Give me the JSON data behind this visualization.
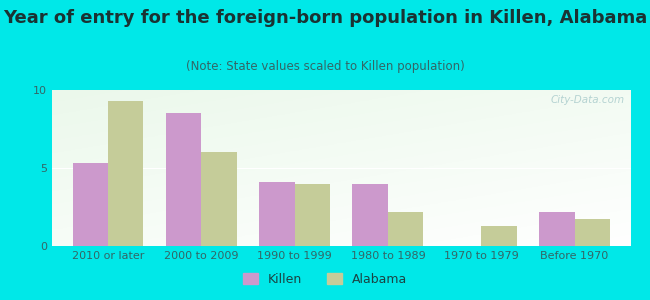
{
  "title": "Year of entry for the foreign-born population in Killen, Alabama",
  "subtitle": "(Note: State values scaled to Killen population)",
  "categories": [
    "2010 or later",
    "2000 to 2009",
    "1990 to 1999",
    "1980 to 1989",
    "1970 to 1979",
    "Before 1970"
  ],
  "killen_values": [
    5.3,
    8.5,
    4.1,
    4.0,
    0.0,
    2.2
  ],
  "alabama_values": [
    9.3,
    6.0,
    4.0,
    2.2,
    1.3,
    1.7
  ],
  "killen_color": "#cc99cc",
  "alabama_color": "#c5cc99",
  "background_outer": "#00e8e8",
  "ylim": [
    0,
    10
  ],
  "yticks": [
    0,
    5,
    10
  ],
  "bar_width": 0.38,
  "legend_labels": [
    "Killen",
    "Alabama"
  ],
  "title_fontsize": 13,
  "subtitle_fontsize": 8.5,
  "tick_fontsize": 8,
  "watermark": "City-Data.com"
}
